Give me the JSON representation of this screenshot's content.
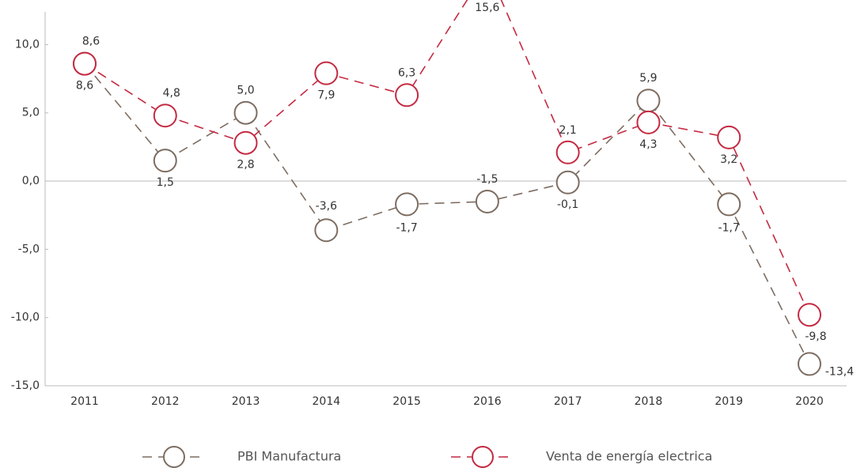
{
  "chart_data": {
    "type": "line",
    "categories": [
      "2011",
      "2012",
      "2013",
      "2014",
      "2015",
      "2016",
      "2017",
      "2018",
      "2019",
      "2020"
    ],
    "series": [
      {
        "name": "PBI Manufactura",
        "color": "#7d6d62",
        "values": [
          8.6,
          1.5,
          5.0,
          -3.6,
          -1.7,
          -1.5,
          -0.1,
          5.9,
          -1.7,
          -13.4
        ],
        "value_labels": [
          "8,6",
          "1,5",
          "5,0",
          "-3,6",
          "-1,7",
          "-1,5",
          "-0,1",
          "5,9",
          "-1,7",
          "-13,4"
        ]
      },
      {
        "name": "Venta de energía electrica",
        "color": "#c42a42",
        "values": [
          8.6,
          4.8,
          2.8,
          7.9,
          6.3,
          15.6,
          2.1,
          4.3,
          3.2,
          -9.8
        ],
        "value_labels": [
          "8,6",
          "4,8",
          "2,8",
          "7,9",
          "6,3",
          "15,6",
          "2,1",
          "4,3",
          "3,2",
          "-9,8"
        ]
      }
    ],
    "ylim": [
      -15,
      12.4
    ],
    "yticks": [
      {
        "value": -15,
        "label": "-15,0"
      },
      {
        "value": -10,
        "label": "-10,0"
      },
      {
        "value": -5,
        "label": "-5,0"
      },
      {
        "value": 0,
        "label": "0,0"
      },
      {
        "value": 5,
        "label": "5,0"
      },
      {
        "value": 10,
        "label": "10,0"
      }
    ],
    "legend": "bottom"
  }
}
